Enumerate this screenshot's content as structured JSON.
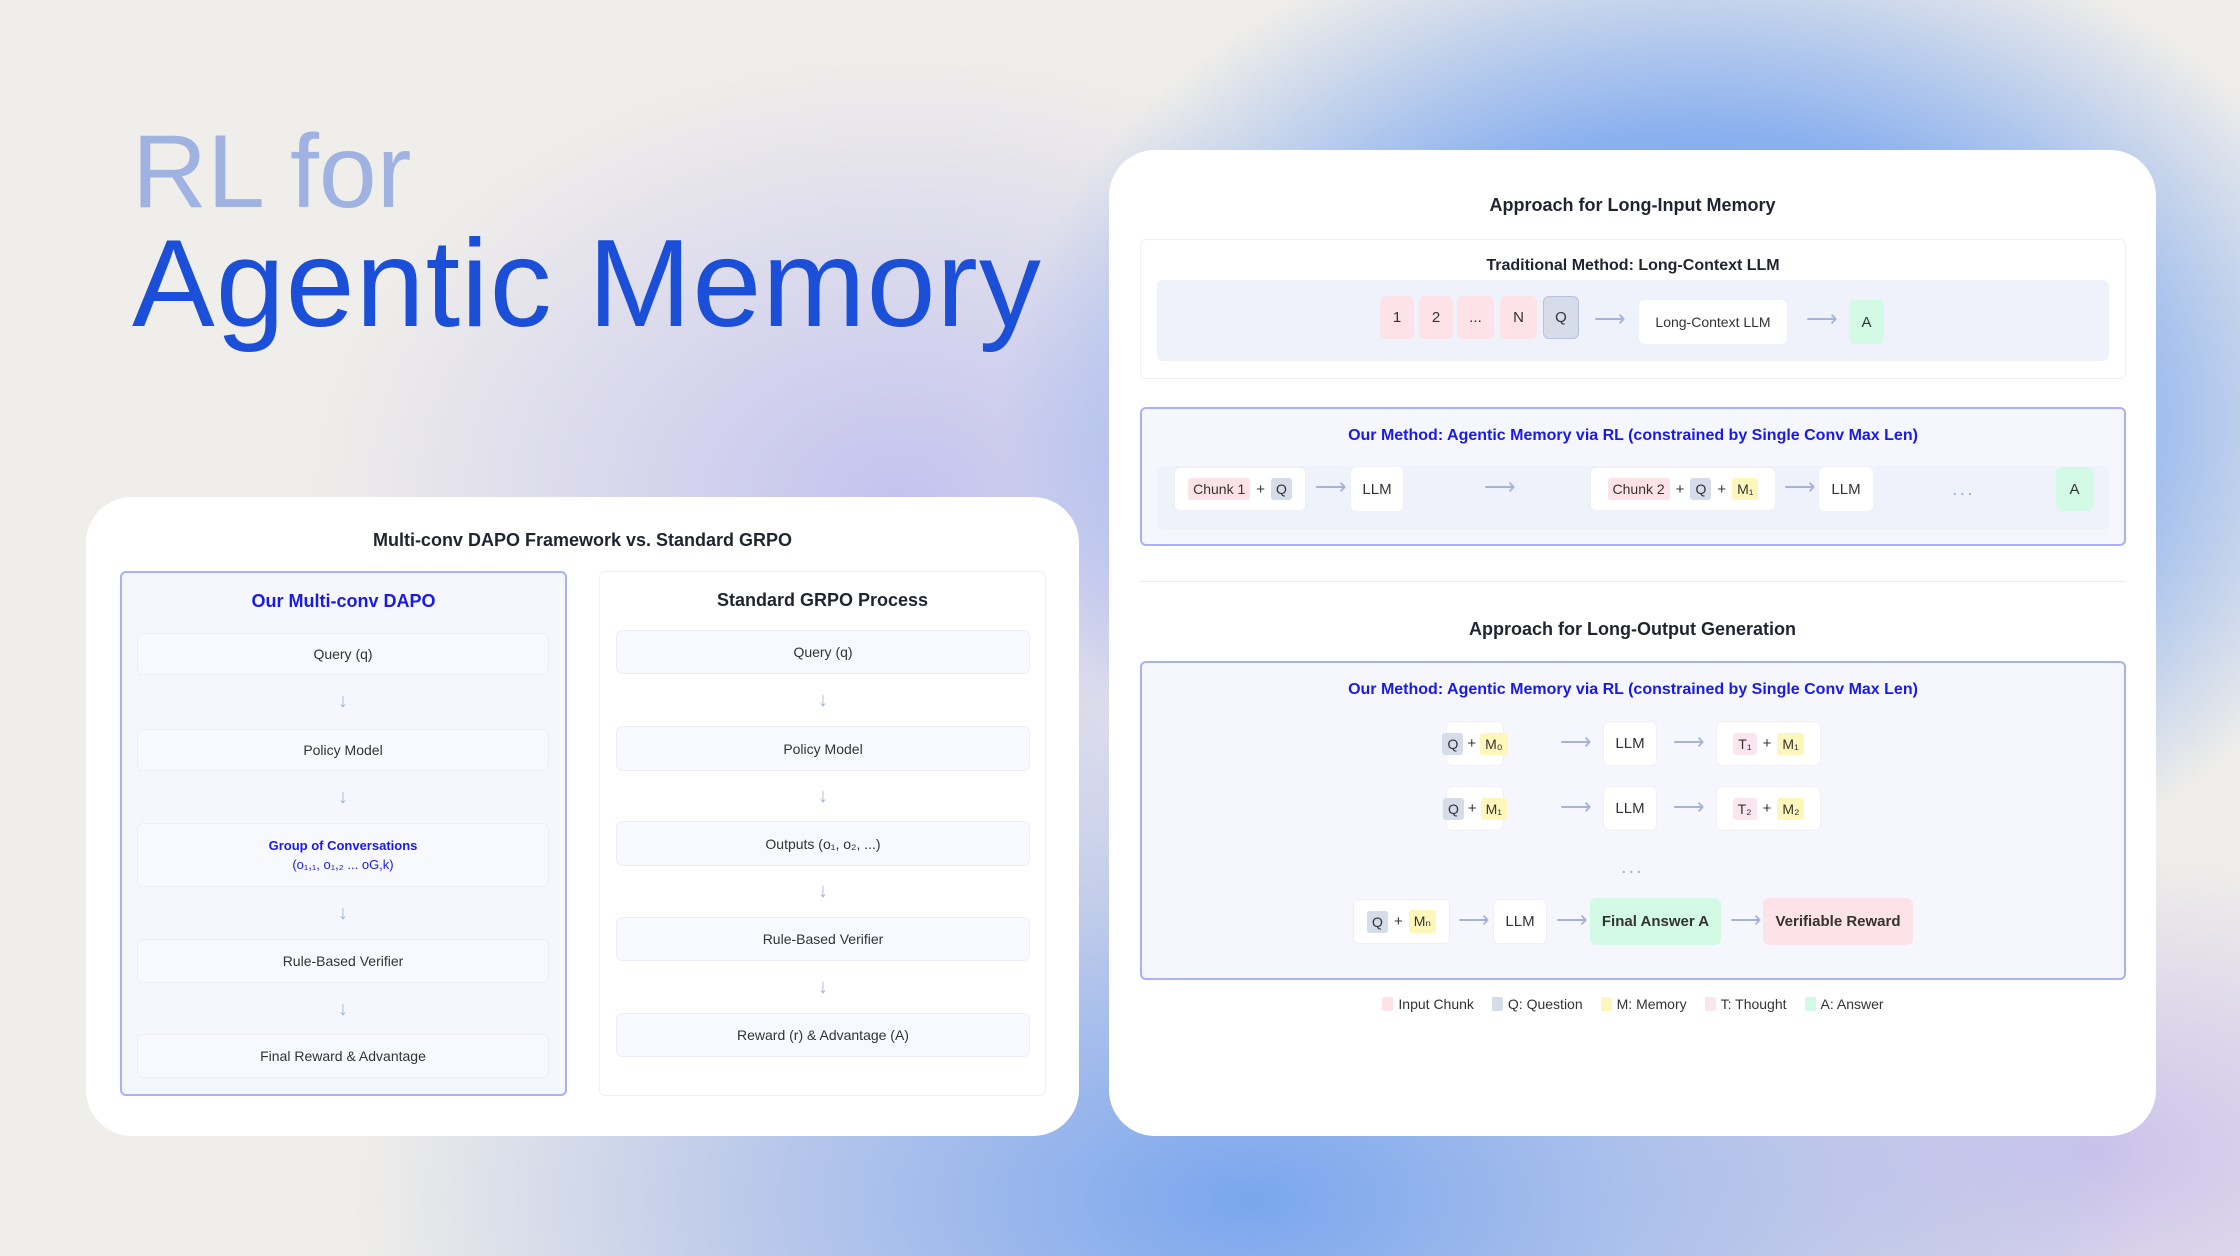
{
  "hero": {
    "line1": "RL for",
    "line2": "Agentic Memory"
  },
  "left_card": {
    "title": "Multi-conv DAPO Framework vs. Standard GRPO",
    "ours": {
      "title": "Our Multi-conv DAPO",
      "steps": [
        "Query (q)",
        "Policy Model",
        "Group of Conversations",
        "Rule-Based Verifier",
        "Final Reward & Advantage"
      ],
      "group_sub": "(o₁,₁, o₁,₂ ... oG,k)"
    },
    "standard": {
      "title": "Standard GRPO Process",
      "steps": [
        "Query (q)",
        "Policy Model",
        "Outputs (o₁, o₂, ...)",
        "Rule-Based Verifier",
        "Reward (r) & Advantage (A)"
      ]
    },
    "arrow": "↓"
  },
  "right_card": {
    "input_title": "Approach for Long-Input Memory",
    "traditional": {
      "title": "Traditional Method: Long-Context LLM",
      "chunks": [
        "1",
        "2",
        "...",
        "N"
      ],
      "q": "Q",
      "llm": "Long-Context LLM",
      "a": "A"
    },
    "ours_input": {
      "title": "Our Method: Agentic Memory via RL (constrained by Single Conv Max Len)",
      "chunk1": "Chunk 1",
      "chunk2": "Chunk 2",
      "q": "Q",
      "m1": "M₁",
      "plus": "+",
      "llm": "LLM",
      "dots": "...",
      "a": "A"
    },
    "output_title": "Approach for Long-Output Generation",
    "ours_output": {
      "title": "Our Method: Agentic Memory via RL (constrained by Single Conv Max Len)",
      "rows": [
        {
          "q": "Q",
          "m_in": "M₀",
          "llm": "LLM",
          "t": "T₁",
          "m_out": "M₁"
        },
        {
          "q": "Q",
          "m_in": "M₁",
          "llm": "LLM",
          "t": "T₂",
          "m_out": "M₂"
        }
      ],
      "dots": "...",
      "final": {
        "q": "Q",
        "m": "Mₙ",
        "llm": "LLM",
        "answer": "Final Answer A",
        "reward": "Verifiable Reward"
      }
    },
    "arrow": "⟶",
    "legend": [
      {
        "label": "Input Chunk",
        "color": "#fde3e8"
      },
      {
        "label": "Q: Question",
        "color": "#d6dcea"
      },
      {
        "label": "M: Memory",
        "color": "#fdf7bb"
      },
      {
        "label": "T: Thought",
        "color": "#fbe6f0"
      },
      {
        "label": "A: Answer",
        "color": "#d2fae4"
      }
    ]
  }
}
